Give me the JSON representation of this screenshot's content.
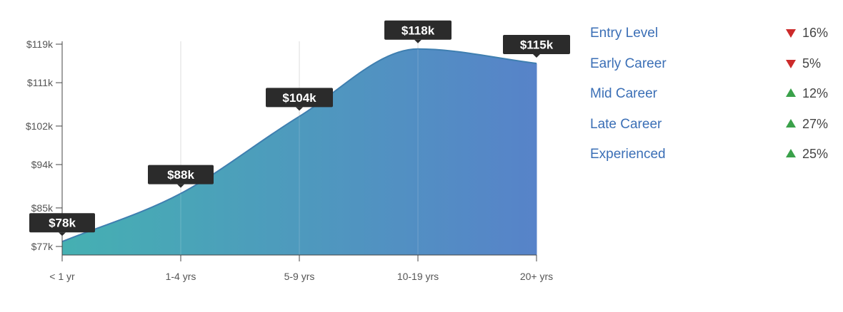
{
  "chart_data": {
    "type": "area",
    "categories": [
      "< 1 yr",
      "1-4 yrs",
      "5-9 yrs",
      "10-19 yrs",
      "20+ yrs"
    ],
    "values": [
      78,
      88,
      104,
      118,
      115
    ],
    "data_labels": [
      "$78k",
      "$88k",
      "$104k",
      "$118k",
      "$115k"
    ],
    "y_ticks": [
      77,
      85,
      94,
      102,
      111,
      119
    ],
    "y_tick_labels": [
      "$77k",
      "$85k",
      "$94k",
      "$102k",
      "$111k",
      "$119k"
    ],
    "ylim": [
      77,
      119
    ],
    "grid": "vertical",
    "colors": {
      "gradient_start": "#45b0b2",
      "gradient_end": "#5783c9",
      "line": "#3f7fb0",
      "tooltip": "#2b2b2b"
    }
  },
  "legend": [
    {
      "name": "Entry Level",
      "direction": "down",
      "change": "16%"
    },
    {
      "name": "Early Career",
      "direction": "down",
      "change": "5%"
    },
    {
      "name": "Mid Career",
      "direction": "up",
      "change": "12%"
    },
    {
      "name": "Late Career",
      "direction": "up",
      "change": "27%"
    },
    {
      "name": "Experienced",
      "direction": "up",
      "change": "25%"
    }
  ]
}
